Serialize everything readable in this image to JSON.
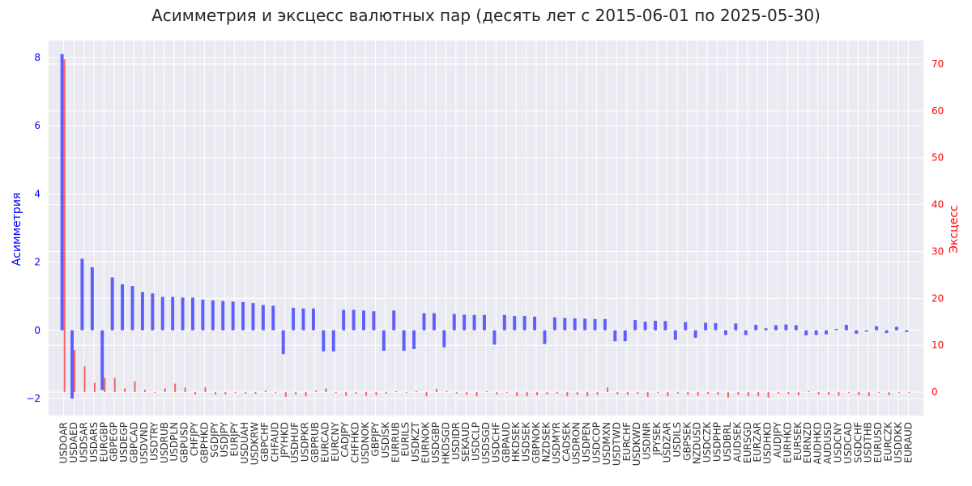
{
  "chart_data": {
    "type": "bar",
    "title": "Асимметрия и эксцесс валютных пар (десять лет с 2015-06-01 по 2025-05-30)",
    "xlabel": "",
    "ylabel_left": "Асимметрия",
    "ylabel_right": "Эксцесс",
    "ylim_left": [
      -2.5,
      8.5
    ],
    "ylim_right": [
      -5,
      75
    ],
    "yticks_left": [
      "8",
      "6",
      "4",
      "2",
      "0",
      "−2"
    ],
    "ytick_values_left": [
      8,
      6,
      4,
      2,
      0,
      -2
    ],
    "yticks_right": [
      "70",
      "60",
      "50",
      "40",
      "30",
      "20",
      "10",
      "0"
    ],
    "ytick_values_right": [
      70,
      60,
      50,
      40,
      30,
      20,
      10,
      0
    ],
    "grid": true,
    "colors": {
      "skew": "#0000ff",
      "kurt": "#ff0000",
      "plot_bg": "#eaeaf2",
      "grid": "#ffffff"
    },
    "categories": [
      "USDOAR",
      "USDAED",
      "USDSAR",
      "USDARS",
      "EURGBP",
      "GBPEGP",
      "USDEGP",
      "GBPCAD",
      "USDVND",
      "USDTRY",
      "USDRUB",
      "USDPLN",
      "GBPUSD",
      "CHFJPY",
      "GBPHKD",
      "SGDJPY",
      "USDJPY",
      "EURJPY",
      "USDUAH",
      "USDKRW",
      "GBPCHF",
      "CHFAUD",
      "JPYHKD",
      "USDHUF",
      "USDPKR",
      "GBPRUB",
      "EURCAD",
      "EURCNY",
      "CADJPY",
      "CHFHKD",
      "USDNOK",
      "GBPJPY",
      "USDISK",
      "EURRUB",
      "EURILS",
      "USDKZT",
      "EURNOK",
      "USDGBP",
      "HKDSGD",
      "USDIDR",
      "SEKAUD",
      "USDCLP",
      "USDSGD",
      "USDCHF",
      "GBPAUD",
      "HKDSEK",
      "USDSEK",
      "GBPNOK",
      "NZDSEK",
      "USDMYR",
      "CADSEK",
      "USDRON",
      "USDPEN",
      "USDCOP",
      "USDMXN",
      "USDTWD",
      "EURCHF",
      "USDKWD",
      "USDINR",
      "JPYSEK",
      "USDZAR",
      "USDILS",
      "GBPSEK",
      "NZDUSD",
      "USDCZK",
      "USDPHP",
      "USDBRL",
      "AUDSEK",
      "EURSGD",
      "EURZAR",
      "USDHKD",
      "AUDJPY",
      "EURHKD",
      "EURSEK",
      "EURNZD",
      "AUDHKD",
      "AUDUSD",
      "USDCNY",
      "USDCAD",
      "SGDCHF",
      "USDTHB",
      "EURUSD",
      "EURCZK",
      "USDDKK",
      "EURAUD"
    ],
    "series": [
      {
        "name": "",
        "axis": "left",
        "values": [
          8.1,
          -2.0,
          2.1,
          1.85,
          -1.75,
          1.55,
          1.35,
          1.3,
          1.12,
          1.08,
          0.98,
          0.98,
          0.96,
          0.96,
          0.9,
          0.88,
          0.86,
          0.84,
          0.83,
          0.8,
          0.74,
          0.72,
          -0.7,
          0.66,
          0.64,
          0.64,
          -0.62,
          -0.62,
          0.6,
          0.6,
          0.58,
          0.56,
          -0.6,
          0.58,
          -0.6,
          -0.55,
          0.5,
          0.5,
          -0.5,
          0.48,
          0.46,
          0.45,
          0.45,
          -0.42,
          0.45,
          0.42,
          0.42,
          0.4,
          -0.4,
          0.38,
          0.36,
          0.35,
          0.34,
          0.33,
          0.33,
          -0.32,
          -0.32,
          0.3,
          0.25,
          0.28,
          0.27,
          -0.28,
          0.24,
          -0.22,
          0.22,
          0.21,
          -0.14,
          0.2,
          -0.14,
          0.16,
          0.06,
          0.15,
          0.17,
          0.15,
          -0.15,
          -0.14,
          -0.12,
          0.04,
          0.16,
          -0.1,
          -0.04,
          0.12,
          -0.08,
          0.1,
          -0.05
        ]
      },
      {
        "name": "",
        "axis": "right",
        "values": [
          71.0,
          9.0,
          5.5,
          2.0,
          3.0,
          3.0,
          0.8,
          2.3,
          0.5,
          0.0,
          0.8,
          1.8,
          1.0,
          -0.5,
          1.0,
          -0.5,
          -0.5,
          -0.2,
          -0.3,
          -0.4,
          0.3,
          -0.2,
          -1.0,
          -0.5,
          -0.9,
          0.3,
          0.8,
          -0.2,
          -0.8,
          -0.3,
          -0.8,
          -0.7,
          -0.3,
          0.2,
          0.0,
          0.2,
          -0.9,
          0.7,
          0.2,
          -0.3,
          -0.6,
          -0.9,
          0.2,
          -0.5,
          0.0,
          -0.9,
          -0.9,
          -0.7,
          -0.5,
          -0.3,
          -0.9,
          -0.6,
          -0.9,
          -0.6,
          1.0,
          -0.5,
          -0.6,
          -0.4,
          -1.0,
          -0.2,
          -0.9,
          -0.3,
          -0.6,
          -0.8,
          -0.4,
          -0.6,
          -1.2,
          -0.6,
          -0.9,
          -0.9,
          -1.2,
          -0.3,
          -0.4,
          -0.7,
          0.2,
          -0.5,
          -0.6,
          -0.8,
          0.0,
          -0.7,
          -0.9,
          -0.1,
          -0.7,
          0.0,
          0.0
        ]
      }
    ]
  }
}
